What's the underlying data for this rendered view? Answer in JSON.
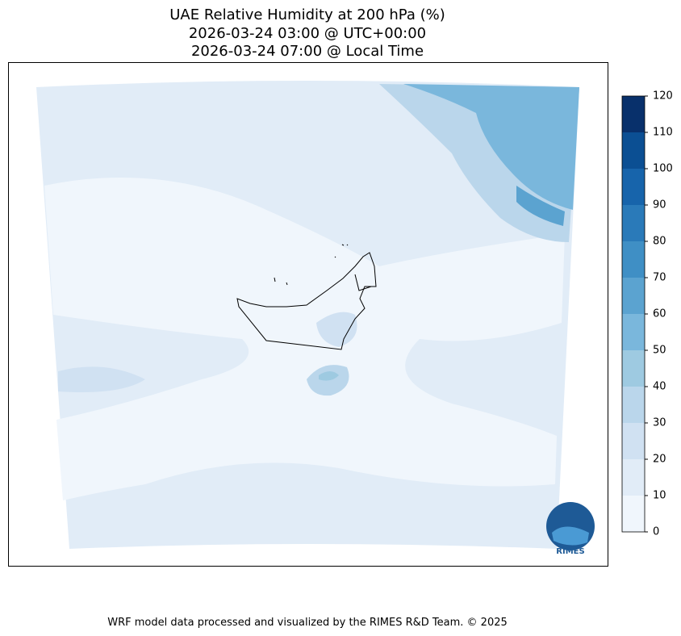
{
  "title": [
    "UAE Relative Humidity at 200 hPa (%)",
    "2026-03-24 03:00 @ UTC+00:00",
    "2026-03-24 07:00 @ Local Time"
  ],
  "colorbar": {
    "lim": [
      0,
      120
    ],
    "ticks": [
      0,
      10,
      20,
      30,
      40,
      50,
      60,
      70,
      80,
      90,
      100,
      110,
      120
    ],
    "colors": [
      "#f0f6fc",
      "#e1ecf7",
      "#d0e1f2",
      "#bad6eb",
      "#9ecae1",
      "#7ab7dc",
      "#5ba3d0",
      "#3f8fc5",
      "#2a7ab9",
      "#1764ab",
      "#0b4f93",
      "#08306b"
    ]
  },
  "logo": "RIMES",
  "footer": "WRF model data processed and visualized by the RIMES R&D Team. © 2025"
}
